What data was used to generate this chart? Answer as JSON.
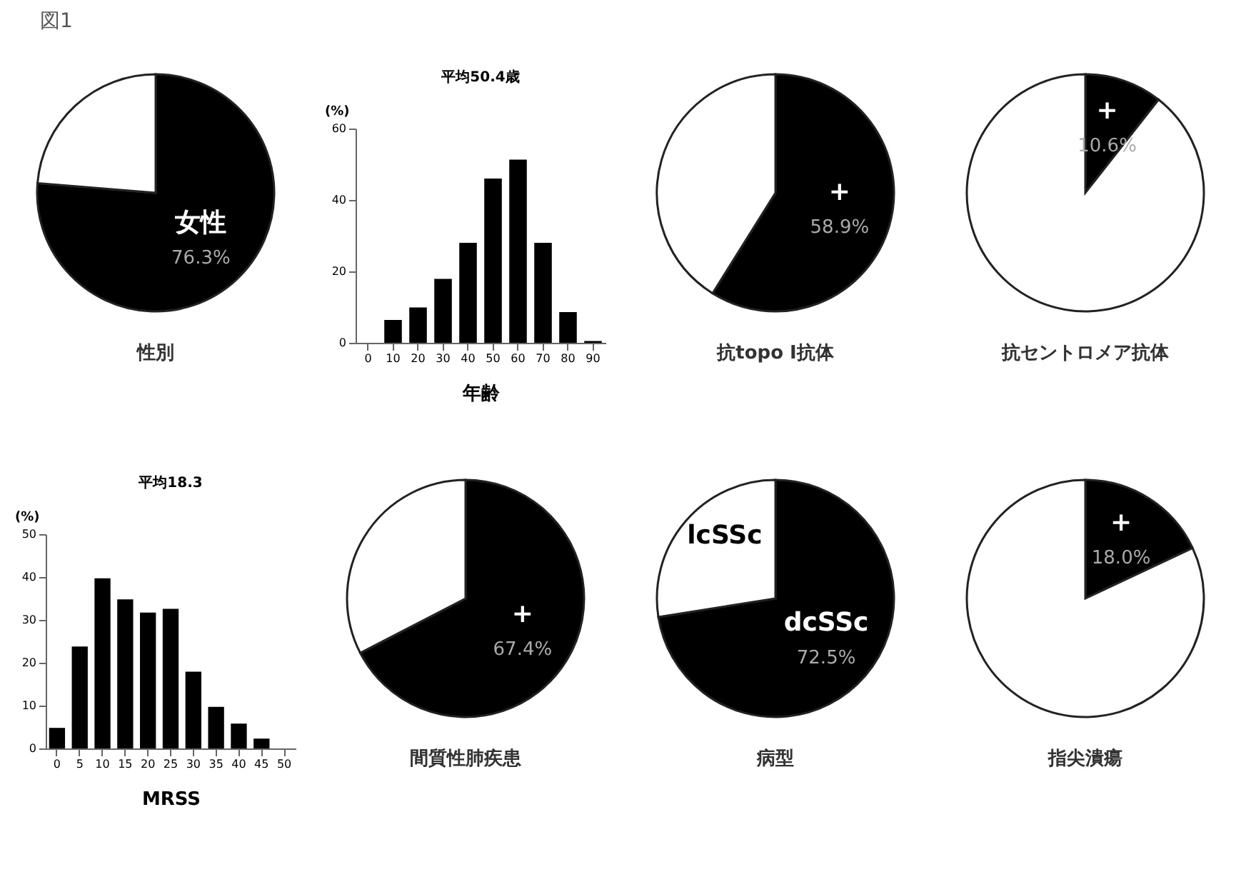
{
  "chart_data": [
    {
      "type": "pie",
      "title": "図1",
      "xlabel": "性別",
      "categories": [
        "女性",
        null
      ],
      "values": [
        76.3,
        23.7
      ],
      "colors": [
        "#000000",
        "#ffffff"
      ],
      "value_labels": [
        "76.3%",
        null
      ]
    },
    {
      "type": "bar",
      "title": "平均50.4歳",
      "xlabel": "年齢",
      "ylabel": "(%)",
      "categories": [
        "0",
        "10",
        "20",
        "30",
        "40",
        "50",
        "60",
        "70",
        "80",
        "90"
      ],
      "series": [
        {
          "color": "#000000",
          "values": [
            0,
            6.4,
            9.9,
            17.9,
            28,
            46,
            51.3,
            28,
            8.6,
            0.5
          ]
        }
      ],
      "ylim": [
        0,
        60
      ],
      "yticks": [
        0,
        20,
        40,
        60
      ]
    },
    {
      "type": "pie",
      "xlabel": "抗topo I抗体",
      "categories": [
        "+",
        null
      ],
      "values": [
        58.9,
        41.1
      ],
      "colors": [
        "#000000",
        "#ffffff"
      ],
      "value_labels": [
        "58.9%",
        null
      ]
    },
    {
      "type": "pie",
      "xlabel": "抗セントロメア抗体",
      "categories": [
        "+",
        null
      ],
      "values": [
        10.6,
        89.4
      ],
      "colors": [
        "#000000",
        "#ffffff"
      ],
      "value_labels": [
        "10.6%",
        null
      ]
    },
    {
      "type": "bar",
      "title": "平均18.3",
      "xlabel": "MRSS",
      "ylabel": "(%)",
      "categories": [
        "0",
        "5",
        "10",
        "15",
        "20",
        "25",
        "30",
        "35",
        "40",
        "45",
        "50"
      ],
      "series": [
        {
          "color": "#000000",
          "values": [
            4.8,
            23.8,
            39.7,
            34.8,
            31.7,
            32.6,
            17.9,
            9.7,
            5.8,
            2.3,
            0
          ]
        }
      ],
      "ylim": [
        0,
        50
      ],
      "yticks": [
        0,
        10,
        20,
        30,
        40,
        50
      ]
    },
    {
      "type": "pie",
      "xlabel": "間質性肺疾患",
      "categories": [
        "+",
        null
      ],
      "values": [
        67.4,
        32.6
      ],
      "colors": [
        "#000000",
        "#ffffff"
      ],
      "value_labels": [
        "67.4%",
        null
      ]
    },
    {
      "type": "pie",
      "xlabel": "病型",
      "categories": [
        "dcSSc",
        "lcSSc"
      ],
      "values": [
        72.5,
        27.5
      ],
      "colors": [
        "#000000",
        "#ffffff"
      ],
      "value_labels": [
        "72.5%",
        null
      ]
    },
    {
      "type": "pie",
      "xlabel": "指尖潰瘍",
      "categories": [
        "+",
        null
      ],
      "values": [
        18.0,
        82.0
      ],
      "colors": [
        "#000000",
        "#ffffff"
      ],
      "value_labels": [
        "18.0%",
        null
      ]
    }
  ]
}
